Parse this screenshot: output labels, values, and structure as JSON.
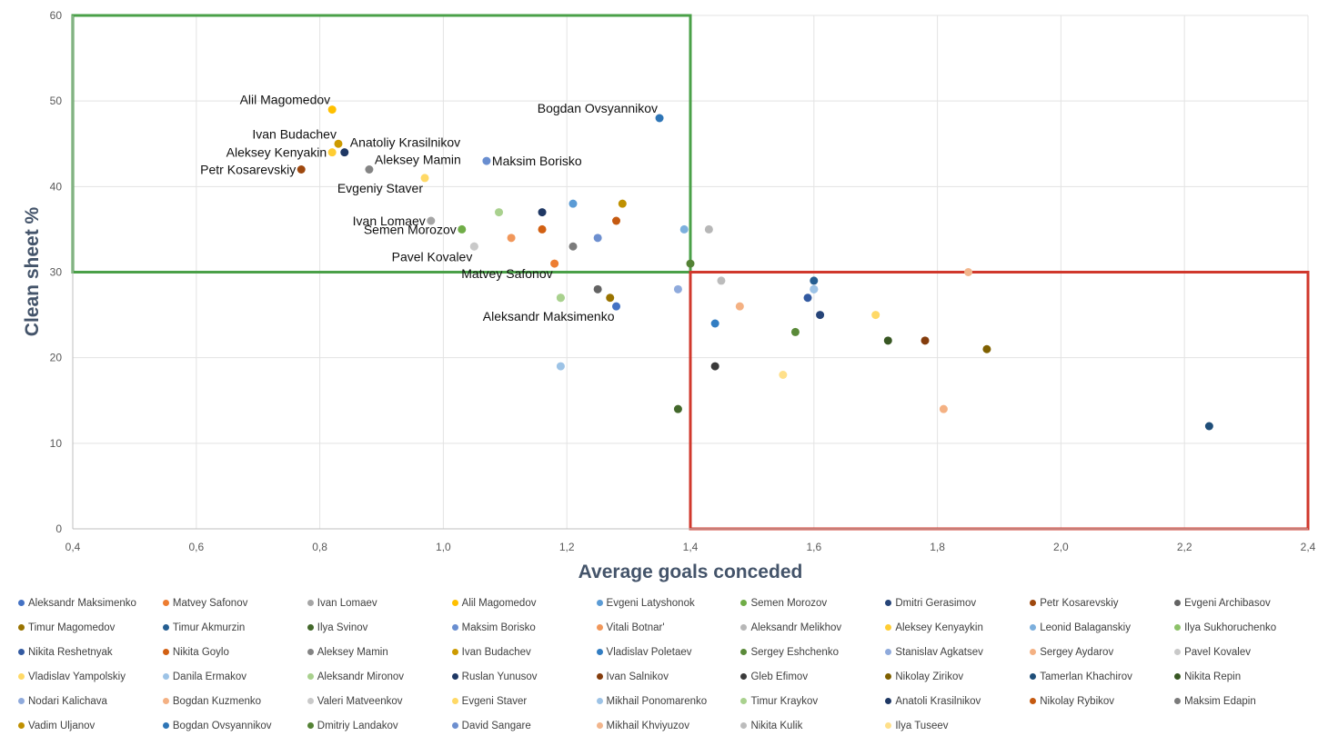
{
  "chart_data": {
    "type": "scatter",
    "title": "",
    "xlabel": "Average goals conceded",
    "ylabel": "Clean sheet %",
    "xlim": [
      0.4,
      2.4
    ],
    "ylim": [
      0,
      60
    ],
    "x_ticks": [
      "0,4",
      "0,6",
      "0,8",
      "1,0",
      "1,2",
      "1,4",
      "1,6",
      "1,8",
      "2,0",
      "2,2",
      "2,4"
    ],
    "y_ticks": [
      "0",
      "10",
      "20",
      "30",
      "40",
      "50",
      "60"
    ],
    "grid": true,
    "legend_position": "bottom",
    "quadrants": [
      {
        "color": "#4aa048",
        "x": [
          0.4,
          1.4
        ],
        "y": [
          30,
          60
        ]
      },
      {
        "color": "#d0382c",
        "x": [
          1.4,
          2.4
        ],
        "y": [
          0,
          30
        ]
      }
    ],
    "series": [
      {
        "name": "Aleksandr Maksimenko",
        "color": "#4472c4",
        "x": 1.28,
        "y": 26,
        "label": "Aleksandr Maksimenko",
        "label_pos": "below-left"
      },
      {
        "name": "Matvey Safonov",
        "color": "#ed7d31",
        "x": 1.18,
        "y": 31,
        "label": "Matvey Safonov",
        "label_pos": "below-left"
      },
      {
        "name": "Ivan Lomaev",
        "color": "#a5a5a5",
        "x": 0.98,
        "y": 36,
        "label": "Ivan Lomaev",
        "label_pos": "left"
      },
      {
        "name": "Alil Magomedov",
        "color": "#ffc000",
        "x": 0.82,
        "y": 49,
        "label": "Alil Magomedov",
        "label_pos": "above-left"
      },
      {
        "name": "Evgeni Latyshonok",
        "color": "#5b9bd5",
        "x": 1.21,
        "y": 38
      },
      {
        "name": "Semen Morozov",
        "color": "#70ad47",
        "x": 1.03,
        "y": 35,
        "label": "Semen Morozov",
        "label_pos": "left"
      },
      {
        "name": "Dmitri Gerasimov",
        "color": "#264478",
        "x": 1.61,
        "y": 25
      },
      {
        "name": "Petr Kosarevskiy",
        "color": "#9e480e",
        "x": 0.77,
        "y": 42,
        "label": "Petr Kosarevskiy",
        "label_pos": "left"
      },
      {
        "name": "Evgeni Archibasov",
        "color": "#636363",
        "x": 1.25,
        "y": 28
      },
      {
        "name": "Timur Magomedov",
        "color": "#997300",
        "x": 1.27,
        "y": 27
      },
      {
        "name": "Timur Akmurzin",
        "color": "#255e91",
        "x": 1.6,
        "y": 29
      },
      {
        "name": "Ilya Svinov",
        "color": "#43682b",
        "x": 1.38,
        "y": 14
      },
      {
        "name": "Maksim Borisko",
        "color": "#698ed0",
        "x": 1.07,
        "y": 43,
        "label": "Maksim Borisko",
        "label_pos": "right"
      },
      {
        "name": "Vitali Botnar'",
        "color": "#f1975a",
        "x": 1.11,
        "y": 34
      },
      {
        "name": "Aleksandr Melikhov",
        "color": "#b7b7b7",
        "x": 1.43,
        "y": 35
      },
      {
        "name": "Aleksey Kenyaykin",
        "color": "#ffcd33",
        "x": 0.82,
        "y": 44,
        "label": "Aleksey Kenyakin",
        "label_pos": "left"
      },
      {
        "name": "Leonid Balaganskiy",
        "color": "#7cafdd",
        "x": 1.39,
        "y": 35
      },
      {
        "name": "Ilya Sukhoruchenko",
        "color": "#8cc168",
        "x": 1.19,
        "y": 27
      },
      {
        "name": "Nikita Reshetnyak",
        "color": "#335aa1",
        "x": 1.59,
        "y": 27
      },
      {
        "name": "Nikita Goylo",
        "color": "#d26012",
        "x": 1.16,
        "y": 35
      },
      {
        "name": "Aleksey Mamin",
        "color": "#848484",
        "x": 0.88,
        "y": 42,
        "label": "Aleksey Mamin",
        "label_pos": "above-right"
      },
      {
        "name": "Ivan Budachev",
        "color": "#cc9a00",
        "x": 0.83,
        "y": 45,
        "label": "Ivan Budachev",
        "label_pos": "above-left"
      },
      {
        "name": "Vladislav Poletaev",
        "color": "#327dc2",
        "x": 1.44,
        "y": 24
      },
      {
        "name": "Sergey Eshchenko",
        "color": "#5a8a39",
        "x": 1.57,
        "y": 23
      },
      {
        "name": "Stanislav Agkatsev",
        "color": "#8faadc",
        "x": 1.6,
        "y": 28
      },
      {
        "name": "Sergey Aydarov",
        "color": "#f4b183",
        "x": 1.81,
        "y": 14
      },
      {
        "name": "Pavel Kovalev",
        "color": "#c9c9c9",
        "x": 1.05,
        "y": 33,
        "label": "Pavel Kovalev",
        "label_pos": "below-left"
      },
      {
        "name": "Vladislav Yampolskiy",
        "color": "#ffd966",
        "x": 1.7,
        "y": 25
      },
      {
        "name": "Danila Ermakov",
        "color": "#9dc3e6",
        "x": 1.19,
        "y": 19
      },
      {
        "name": "Aleksandr Mironov",
        "color": "#a9d18e",
        "x": 1.09,
        "y": 37
      },
      {
        "name": "Ruslan Yunusov",
        "color": "#1f3864",
        "x": 1.16,
        "y": 37
      },
      {
        "name": "Ivan Salnikov",
        "color": "#843c0c",
        "x": 1.78,
        "y": 22
      },
      {
        "name": "Gleb Efimov",
        "color": "#3a3a3a",
        "x": 1.44,
        "y": 19
      },
      {
        "name": "Nikolay Zirikov",
        "color": "#7f6000",
        "x": 1.88,
        "y": 21
      },
      {
        "name": "Tamerlan Khachirov",
        "color": "#1f4e79",
        "x": 2.24,
        "y": 12
      },
      {
        "name": "Nikita Repin",
        "color": "#385723",
        "x": 1.72,
        "y": 22
      },
      {
        "name": "Nodari Kalichava",
        "color": "#8faadc",
        "x": 1.38,
        "y": 28
      },
      {
        "name": "Bogdan Kuzmenko",
        "color": "#f4b183",
        "x": 1.48,
        "y": 26
      },
      {
        "name": "Valeri Matveenkov",
        "color": "#c9c9c9",
        "x": 1.05,
        "y": 33
      },
      {
        "name": "Evgeni Staver",
        "color": "#ffd966",
        "x": 0.97,
        "y": 41,
        "label": "Evgeniy Staver",
        "label_pos": "below-left"
      },
      {
        "name": "Mikhail Ponomarenko",
        "color": "#9dc3e6",
        "x": 1.6,
        "y": 28
      },
      {
        "name": "Timur Kraykov",
        "color": "#a9d18e",
        "x": 1.19,
        "y": 27
      },
      {
        "name": "Anatoli Krasilnikov",
        "color": "#1f3864",
        "x": 0.84,
        "y": 44,
        "label": "Anatoliy Krasilnikov",
        "label_pos": "above-right"
      },
      {
        "name": "Nikolay Rybikov",
        "color": "#c55a11",
        "x": 1.28,
        "y": 36
      },
      {
        "name": "Maksim Edapin",
        "color": "#7b7b7b",
        "x": 1.21,
        "y": 33
      },
      {
        "name": "Vadim Uljanov",
        "color": "#bf9000",
        "x": 1.29,
        "y": 38
      },
      {
        "name": "Bogdan Ovsyannikov",
        "color": "#2e75b6",
        "x": 1.35,
        "y": 48,
        "label": "Bogdan Ovsyannikov",
        "label_pos": "above-left"
      },
      {
        "name": "Dmitriy Landakov",
        "color": "#548235",
        "x": 1.4,
        "y": 31
      },
      {
        "name": "David Sangare",
        "color": "#6d8fcf",
        "x": 1.25,
        "y": 34
      },
      {
        "name": "Mikhail Khviyuzov",
        "color": "#f2b58c",
        "x": 1.85,
        "y": 30
      },
      {
        "name": "Nikita Kulik",
        "color": "#bcbcbc",
        "x": 1.45,
        "y": 29
      },
      {
        "name": "Ilya Tuseev",
        "color": "#ffe08a",
        "x": 1.55,
        "y": 18
      }
    ]
  }
}
